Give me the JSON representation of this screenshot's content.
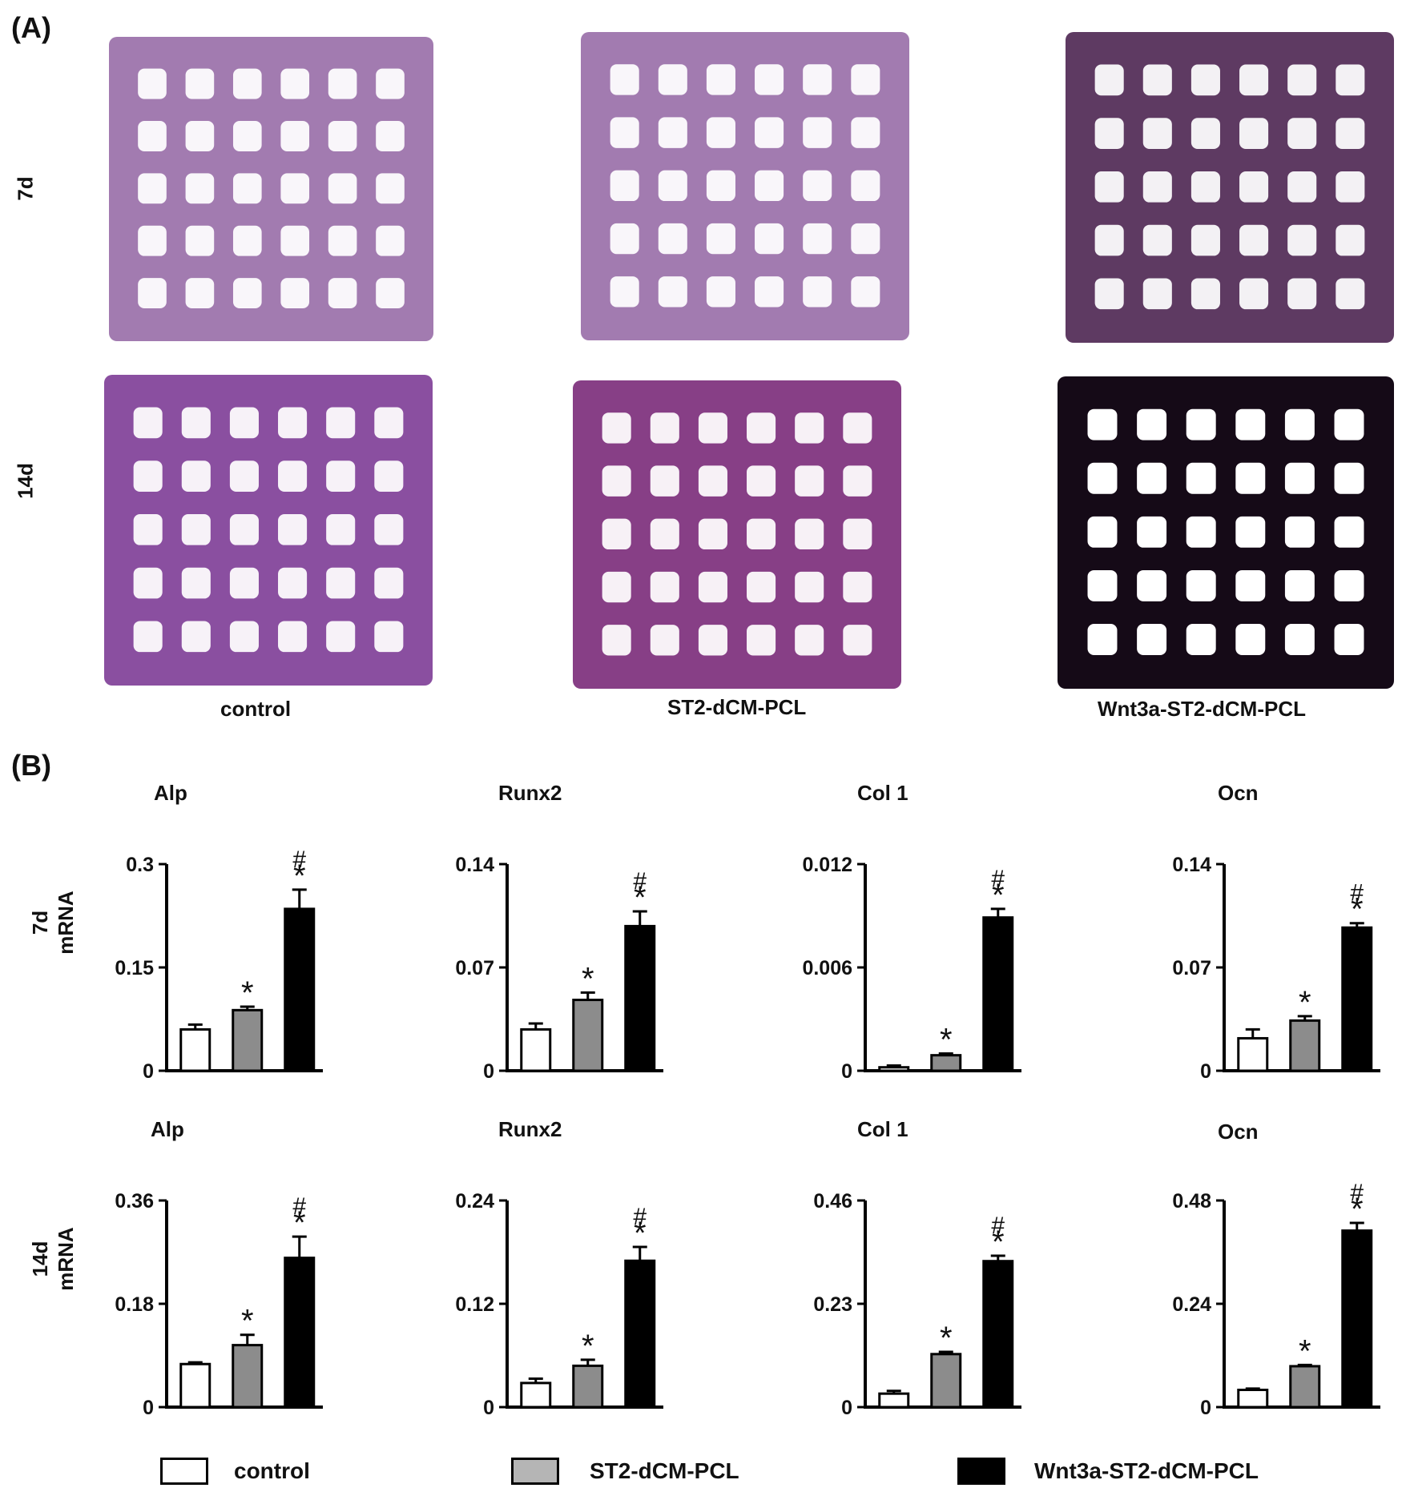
{
  "panel_a": {
    "letter": "(A)",
    "rows": [
      "7d",
      "14d"
    ],
    "conditions": [
      "control",
      "ST2-dCM-PCL",
      "Wnt3a-ST2-dCM-PCL"
    ],
    "stain_colors": {
      "control_7d": "#a27bb0",
      "st2_7d": "#a27bb0",
      "wnt3a_7d": "#5e3a62",
      "control_14d": "#8a4fa0",
      "st2_14d": "#873f86",
      "wnt3a_14d": "#150a17"
    }
  },
  "panel_b": {
    "letter": "(B)",
    "row_labels": [
      {
        "time": "7d",
        "unit": "mRNA"
      },
      {
        "time": "14d",
        "unit": "mRNA"
      }
    ],
    "legend": [
      {
        "label": "control",
        "color": "#ffffff"
      },
      {
        "label": "ST2-dCM-PCL",
        "color": "#8c8c8c"
      },
      {
        "label": "Wnt3a-ST2-dCM-PCL",
        "color": "#000000"
      }
    ]
  },
  "chart_data": [
    {
      "type": "bar",
      "title": "Alp",
      "row": "7d",
      "categories": [
        "control",
        "ST2-dCM-PCL",
        "Wnt3a-ST2-dCM-PCL"
      ],
      "values": [
        0.06,
        0.088,
        0.235
      ],
      "errors": [
        0.007,
        0.005,
        0.028
      ],
      "ylim": [
        0,
        0.3
      ],
      "ticks": [
        "0",
        "0.15",
        "0.3"
      ],
      "annotations": [
        "",
        "*",
        "*#"
      ]
    },
    {
      "type": "bar",
      "title": "Runx2",
      "row": "7d",
      "categories": [
        "control",
        "ST2-dCM-PCL",
        "Wnt3a-ST2-dCM-PCL"
      ],
      "values": [
        0.028,
        0.048,
        0.098
      ],
      "errors": [
        0.004,
        0.005,
        0.01
      ],
      "ylim": [
        0,
        0.14
      ],
      "ticks": [
        "0",
        "0.07",
        "0.14"
      ],
      "annotations": [
        "",
        "*",
        "*#"
      ]
    },
    {
      "type": "bar",
      "title": "Col 1",
      "row": "7d",
      "categories": [
        "control",
        "ST2-dCM-PCL",
        "Wnt3a-ST2-dCM-PCL"
      ],
      "values": [
        0.0002,
        0.0009,
        0.0089
      ],
      "errors": [
        0.0001,
        0.0001,
        0.0005
      ],
      "ylim": [
        0,
        0.012
      ],
      "ticks": [
        "0",
        "0.006",
        "0.012"
      ],
      "annotations": [
        "",
        "*",
        "*#"
      ]
    },
    {
      "type": "bar",
      "title": "Ocn",
      "row": "7d",
      "categories": [
        "control",
        "ST2-dCM-PCL",
        "Wnt3a-ST2-dCM-PCL"
      ],
      "values": [
        0.022,
        0.034,
        0.097
      ],
      "errors": [
        0.006,
        0.003,
        0.003
      ],
      "ylim": [
        0,
        0.14
      ],
      "ticks": [
        "0",
        "0.07",
        "0.14"
      ],
      "annotations": [
        "",
        "*",
        "*#"
      ]
    },
    {
      "type": "bar",
      "title": "Alp",
      "row": "14d",
      "categories": [
        "control",
        "ST2-dCM-PCL",
        "Wnt3a-ST2-dCM-PCL"
      ],
      "values": [
        0.075,
        0.108,
        0.26
      ],
      "errors": [
        0.003,
        0.018,
        0.037
      ],
      "ylim": [
        0,
        0.36
      ],
      "ticks": [
        "0",
        "0.18",
        "0.36"
      ],
      "annotations": [
        "",
        "*",
        "*#"
      ]
    },
    {
      "type": "bar",
      "title": "Runx2",
      "row": "14d",
      "categories": [
        "control",
        "ST2-dCM-PCL",
        "Wnt3a-ST2-dCM-PCL"
      ],
      "values": [
        0.028,
        0.048,
        0.17
      ],
      "errors": [
        0.005,
        0.007,
        0.016
      ],
      "ylim": [
        0,
        0.24
      ],
      "ticks": [
        "0",
        "0.12",
        "0.24"
      ],
      "annotations": [
        "",
        "*",
        "*#"
      ]
    },
    {
      "type": "bar",
      "title": "Col 1",
      "row": "14d",
      "categories": [
        "control",
        "ST2-dCM-PCL",
        "Wnt3a-ST2-dCM-PCL"
      ],
      "values": [
        0.03,
        0.118,
        0.325
      ],
      "errors": [
        0.006,
        0.005,
        0.012
      ],
      "ylim": [
        0,
        0.46
      ],
      "ticks": [
        "0",
        "0.23",
        "0.46"
      ],
      "annotations": [
        "",
        "*",
        "*#"
      ]
    },
    {
      "type": "bar",
      "title": "Ocn",
      "row": "14d",
      "categories": [
        "control",
        "ST2-dCM-PCL",
        "Wnt3a-ST2-dCM-PCL"
      ],
      "values": [
        0.04,
        0.095,
        0.41
      ],
      "errors": [
        0.003,
        0.003,
        0.018
      ],
      "ylim": [
        0,
        0.48
      ],
      "ticks": [
        "0",
        "0.24",
        "0.48"
      ],
      "annotations": [
        "",
        "*",
        "*#"
      ]
    }
  ]
}
